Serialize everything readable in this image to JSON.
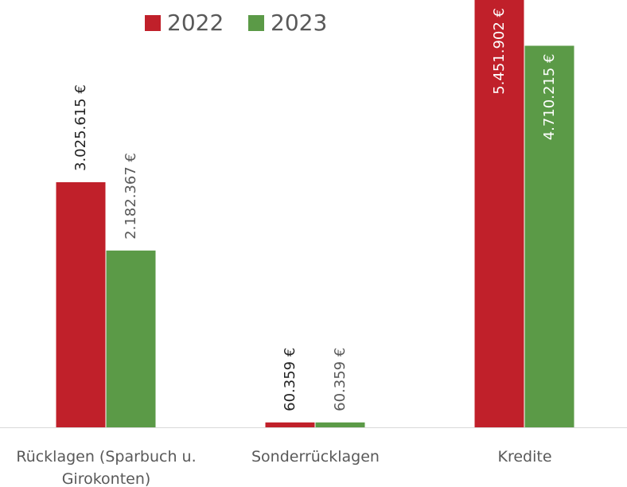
{
  "chart_data": {
    "type": "bar",
    "categories": [
      "Rücklagen (Sparbuch u. Girokonten)",
      "Sonderrücklagen",
      "Kredite"
    ],
    "series": [
      {
        "name": "2022",
        "color": "#c0202a",
        "values": [
          3025615,
          60359,
          5451902
        ],
        "value_labels": [
          "3.025.615 €",
          "60.359 €",
          "5.451.902 €"
        ]
      },
      {
        "name": "2023",
        "color": "#5b9a47",
        "values": [
          2182367,
          60359,
          4710215
        ],
        "value_labels": [
          "2.182.367 €",
          "60.359 €",
          "4.710.215 €"
        ]
      }
    ],
    "ylim": [
      0,
      5275000
    ],
    "legend": "top"
  }
}
